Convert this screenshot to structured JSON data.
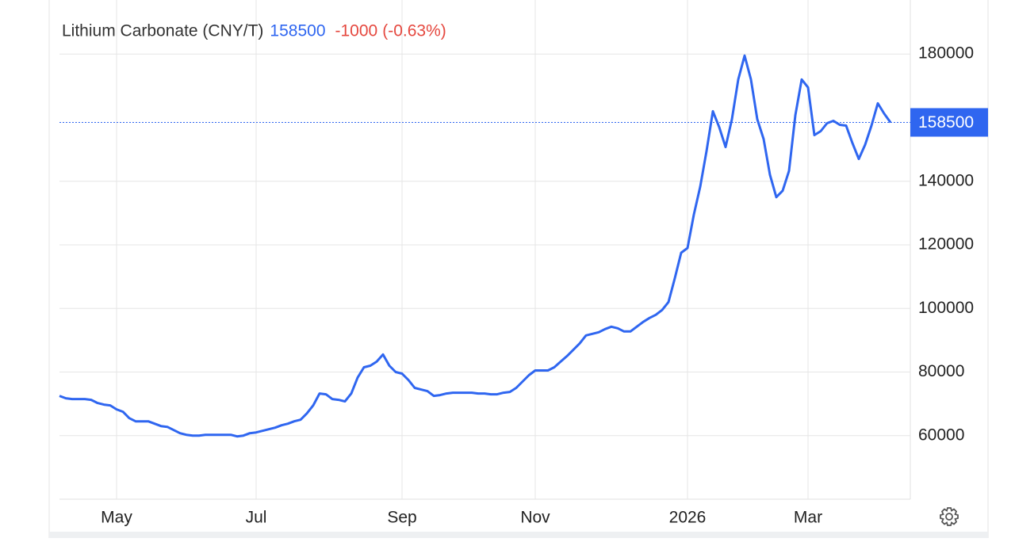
{
  "chart_data": {
    "type": "line",
    "title": "Lithium Carbonate (CNY/T)",
    "last_price": 158500,
    "change": -1000,
    "change_pct": {
      "value": -0.63,
      "label": "(-0.63%)"
    },
    "color": "#2f66f0",
    "change_color": "#e5483f",
    "grid": true,
    "ylim": [
      40000,
      195000
    ],
    "yticks": [
      60000,
      80000,
      100000,
      120000,
      140000,
      180000
    ],
    "categories": [
      null,
      null,
      null,
      null,
      null,
      null,
      null,
      null,
      null,
      "May",
      null,
      null,
      null,
      null,
      null,
      null,
      null,
      null,
      null,
      null,
      null,
      null,
      null,
      null,
      null,
      null,
      null,
      null,
      null,
      null,
      null,
      "Jul",
      null,
      null,
      null,
      null,
      null,
      null,
      null,
      null,
      null,
      null,
      null,
      null,
      null,
      null,
      null,
      null,
      null,
      null,
      null,
      null,
      null,
      null,
      "Sep",
      null,
      null,
      null,
      null,
      null,
      null,
      null,
      null,
      null,
      null,
      null,
      null,
      null,
      null,
      null,
      null,
      null,
      null,
      null,
      null,
      "Nov",
      null,
      null,
      null,
      null,
      null,
      null,
      null,
      null,
      null,
      null,
      null,
      null,
      null,
      null,
      null,
      null,
      null,
      null,
      null,
      null,
      null,
      null,
      null,
      "2026",
      null,
      null,
      null,
      null,
      null,
      null,
      null,
      null,
      null,
      null,
      null,
      null,
      null,
      null,
      null,
      null,
      null,
      null,
      "Mar",
      null,
      null,
      null,
      null,
      null,
      null,
      null,
      null,
      null,
      null,
      null,
      null,
      null
    ],
    "values": [
      72500,
      71750,
      71500,
      71500,
      71500,
      71250,
      70250,
      69750,
      69500,
      68250,
      67500,
      65500,
      64500,
      64500,
      64500,
      63750,
      63000,
      62750,
      61750,
      60750,
      60250,
      60000,
      60000,
      60250,
      60250,
      60250,
      60250,
      60250,
      59750,
      60000,
      60750,
      61000,
      61500,
      62000,
      62500,
      63250,
      63750,
      64500,
      65000,
      67000,
      69500,
      73250,
      73000,
      71500,
      71250,
      70750,
      73250,
      78250,
      81500,
      82000,
      83250,
      85500,
      82000,
      80000,
      79500,
      77500,
      75000,
      74500,
      74000,
      72500,
      72750,
      73250,
      73500,
      73500,
      73500,
      73500,
      73250,
      73250,
      73000,
      73000,
      73500,
      73750,
      75000,
      77000,
      79000,
      80500,
      80500,
      80500,
      81500,
      83250,
      85000,
      87000,
      89000,
      91500,
      92000,
      92500,
      93500,
      94250,
      93750,
      92750,
      92750,
      94250,
      95750,
      97000,
      98000,
      99500,
      102000,
      109500,
      117500,
      119000,
      129500,
      138250,
      149500,
      162000,
      157000,
      150750,
      159500,
      172000,
      179500,
      172000,
      159500,
      153250,
      142000,
      135000,
      137000,
      143250,
      160750,
      172000,
      169500,
      154500,
      155750,
      158250,
      159000,
      157750,
      157500,
      152000,
      147000,
      151500,
      157500,
      164500,
      161250,
      158500
    ]
  }
}
